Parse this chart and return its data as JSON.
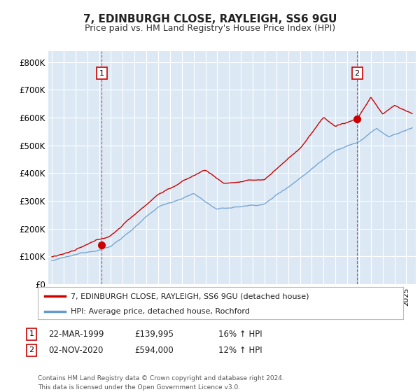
{
  "title": "7, EDINBURGH CLOSE, RAYLEIGH, SS6 9GU",
  "subtitle": "Price paid vs. HM Land Registry's House Price Index (HPI)",
  "background_color": "#ffffff",
  "plot_bg_color": "#dce9f5",
  "grid_color": "#ffffff",
  "red_line_color": "#cc0000",
  "blue_line_color": "#6699cc",
  "ylim": [
    0,
    840000
  ],
  "yticks": [
    0,
    100000,
    200000,
    300000,
    400000,
    500000,
    600000,
    700000,
    800000
  ],
  "ytick_labels": [
    "£0",
    "£100K",
    "£200K",
    "£300K",
    "£400K",
    "£500K",
    "£600K",
    "£700K",
    "£800K"
  ],
  "legend_red": "7, EDINBURGH CLOSE, RAYLEIGH, SS6 9GU (detached house)",
  "legend_blue": "HPI: Average price, detached house, Rochford",
  "marker1_year": 1999.21,
  "marker1_price": 139995,
  "marker1_label": "1",
  "marker1_date": "22-MAR-1999",
  "marker1_pct": "16% ↑ HPI",
  "marker2_year": 2020.83,
  "marker2_price": 594000,
  "marker2_label": "2",
  "marker2_date": "02-NOV-2020",
  "marker2_pct": "12% ↑ HPI",
  "footer": "Contains HM Land Registry data © Crown copyright and database right 2024.\nThis data is licensed under the Open Government Licence v3.0.",
  "xstart": 1995,
  "xend": 2025
}
